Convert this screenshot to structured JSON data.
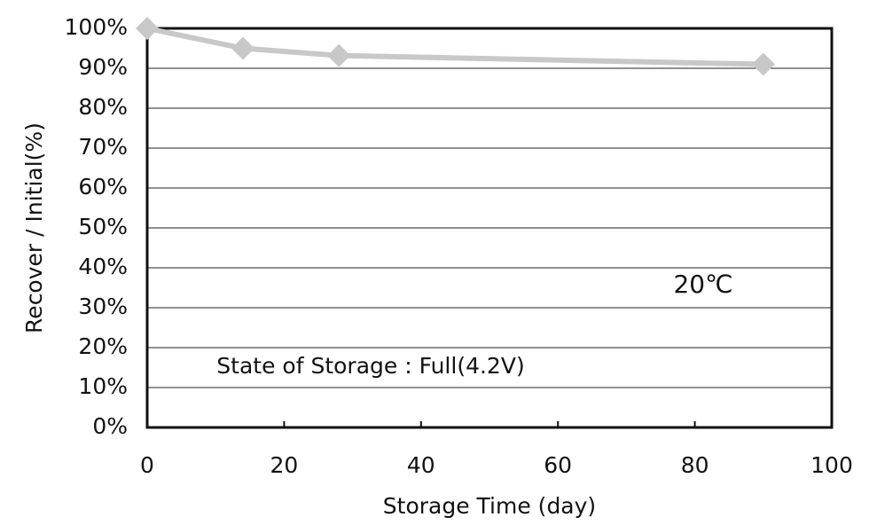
{
  "chart_data": {
    "type": "line",
    "x": [
      0,
      14,
      28,
      90
    ],
    "values": [
      100,
      95,
      93.2,
      91
    ],
    "color": "#c8c8c8",
    "xlabel": "Storage Time (day)",
    "ylabel": "Recover / Initial(%)",
    "annotations": [
      "20℃",
      "State of Storage : Full(4.2V)"
    ],
    "xlim": [
      0,
      100
    ],
    "xticks": [
      0,
      20,
      40,
      60,
      80,
      100
    ],
    "ylim": [
      0,
      100
    ],
    "yticks": [
      {
        "value": 0,
        "label": "0%"
      },
      {
        "value": 10,
        "label": "10%"
      },
      {
        "value": 20,
        "label": "20%"
      },
      {
        "value": 30,
        "label": "30%"
      },
      {
        "value": 40,
        "label": "40%"
      },
      {
        "value": 50,
        "label": "50%"
      },
      {
        "value": 60,
        "label": "60%"
      },
      {
        "value": 70,
        "label": "70%"
      },
      {
        "value": 80,
        "label": "80%"
      },
      {
        "value": 90,
        "label": "90%"
      },
      {
        "value": 100,
        "label": "100%"
      }
    ],
    "grid": true
  }
}
